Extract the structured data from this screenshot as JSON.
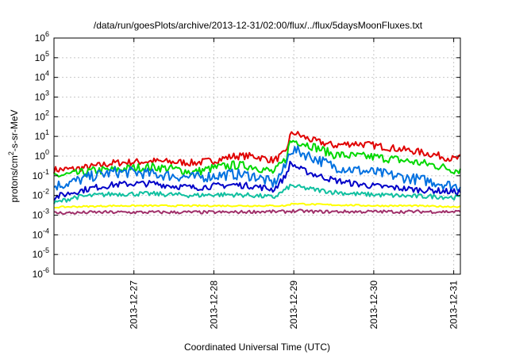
{
  "chart_data": {
    "type": "line",
    "title": "/data/run/goesPlots/archive/2013-12-31/02:00/flux/../flux/5daysMoonFluxes.txt",
    "xlabel": "Coordinated Universal Time (UTC)",
    "ylabel": "protons/cm2-s-sr-MeV",
    "yscale": "log",
    "grid": "on",
    "xlim": [
      "2013-12-26 00:00",
      "2013-12-31 02:00"
    ],
    "ylim": [
      1e-06,
      1000000.0
    ],
    "y_ticks": [
      {
        "base": "10",
        "exp": "-6"
      },
      {
        "base": "10",
        "exp": "-5"
      },
      {
        "base": "10",
        "exp": "-4"
      },
      {
        "base": "10",
        "exp": "-3"
      },
      {
        "base": "10",
        "exp": "-2"
      },
      {
        "base": "10",
        "exp": "-1"
      },
      {
        "base": "10",
        "exp": "0"
      },
      {
        "base": "10",
        "exp": "1"
      },
      {
        "base": "10",
        "exp": "2"
      },
      {
        "base": "10",
        "exp": "3"
      },
      {
        "base": "10",
        "exp": "4"
      },
      {
        "base": "10",
        "exp": "5"
      },
      {
        "base": "10",
        "exp": "6"
      }
    ],
    "x_ticks": [
      "2013-12-27",
      "2013-12-28",
      "2013-12-29",
      "2013-12-30",
      "2013-12-31"
    ],
    "x_tick_days": [
      1,
      2,
      3,
      4,
      5
    ],
    "x": [
      0.0,
      0.25,
      0.5,
      0.75,
      1.0,
      1.25,
      1.5,
      1.75,
      2.0,
      2.25,
      2.5,
      2.75,
      2.9,
      2.95,
      3.0,
      3.1,
      3.25,
      3.5,
      3.75,
      4.0,
      4.25,
      4.5,
      4.75,
      5.0,
      5.08
    ],
    "series": [
      {
        "color": "#e00000",
        "values": [
          0.2,
          0.22,
          0.3,
          0.45,
          0.5,
          0.55,
          0.5,
          0.45,
          0.6,
          1.0,
          1.0,
          0.6,
          1.5,
          10,
          16,
          10,
          6,
          3.5,
          4.5,
          3.5,
          2.5,
          1.8,
          1.2,
          0.7,
          0.8
        ]
      },
      {
        "color": "#00d800",
        "values": [
          0.1,
          0.12,
          0.18,
          0.2,
          0.25,
          0.28,
          0.22,
          0.15,
          0.25,
          0.35,
          0.3,
          0.15,
          0.7,
          5,
          6,
          5,
          3,
          1.2,
          1.0,
          0.9,
          0.7,
          0.5,
          0.35,
          0.2,
          0.2
        ]
      },
      {
        "color": "#0070e0",
        "values": [
          0.03,
          0.05,
          0.1,
          0.15,
          0.15,
          0.12,
          0.1,
          0.08,
          0.1,
          0.12,
          0.1,
          0.04,
          0.3,
          2,
          2,
          1.5,
          0.8,
          0.3,
          0.2,
          0.15,
          0.1,
          0.07,
          0.05,
          0.03,
          0.03
        ]
      },
      {
        "color": "#0000c8",
        "values": [
          0.008,
          0.015,
          0.025,
          0.035,
          0.04,
          0.04,
          0.03,
          0.025,
          0.03,
          0.035,
          0.03,
          0.02,
          0.1,
          0.4,
          0.35,
          0.2,
          0.12,
          0.06,
          0.04,
          0.03,
          0.025,
          0.02,
          0.018,
          0.015,
          0.015
        ]
      },
      {
        "color": "#10c0a0",
        "values": [
          0.004,
          0.008,
          0.01,
          0.012,
          0.012,
          0.012,
          0.011,
          0.01,
          0.011,
          0.011,
          0.01,
          0.008,
          0.02,
          0.03,
          0.03,
          0.025,
          0.02,
          0.015,
          0.012,
          0.011,
          0.01,
          0.009,
          0.009,
          0.008,
          0.008
        ]
      },
      {
        "color": "#ffff00",
        "values": [
          0.0025,
          0.0027,
          0.0028,
          0.003,
          0.003,
          0.003,
          0.003,
          0.003,
          0.003,
          0.003,
          0.003,
          0.003,
          0.003,
          0.0035,
          0.004,
          0.0037,
          0.0035,
          0.0033,
          0.0032,
          0.003,
          0.003,
          0.003,
          0.0028,
          0.0027,
          0.0027
        ]
      },
      {
        "color": "#a0306a",
        "values": [
          0.0013,
          0.0013,
          0.0014,
          0.0014,
          0.0014,
          0.0014,
          0.0014,
          0.0014,
          0.0014,
          0.0014,
          0.0015,
          0.0015,
          0.0015,
          0.0016,
          0.0016,
          0.0016,
          0.0015,
          0.0015,
          0.0015,
          0.0015,
          0.0015,
          0.0015,
          0.0015,
          0.0015,
          0.0015
        ]
      }
    ]
  }
}
